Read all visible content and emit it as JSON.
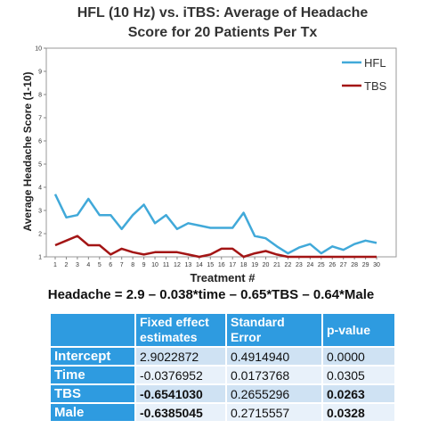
{
  "chart_data": {
    "type": "line",
    "title_lines": [
      "HFL (10 Hz) vs. iTBS: Average of Headache",
      "Score for 20 Patients Per Tx"
    ],
    "xlabel": "Treatment #",
    "ylabel": "Average Headache Score (1-10)",
    "x": [
      1,
      2,
      3,
      4,
      5,
      6,
      7,
      8,
      9,
      10,
      11,
      12,
      13,
      14,
      15,
      16,
      17,
      18,
      19,
      20,
      21,
      22,
      23,
      24,
      25,
      26,
      27,
      28,
      29,
      30
    ],
    "ylim": [
      1,
      10
    ],
    "yticks": [
      1,
      2,
      3,
      4,
      5,
      6,
      7,
      8,
      9,
      10
    ],
    "legend_position": "top-right",
    "series": [
      {
        "name": "HFL",
        "color": "#41a9d9",
        "values": [
          3.7,
          2.7,
          2.8,
          3.5,
          2.8,
          2.8,
          2.2,
          2.8,
          3.25,
          2.45,
          2.8,
          2.2,
          2.45,
          2.35,
          2.25,
          2.25,
          2.25,
          2.9,
          1.9,
          1.8,
          1.45,
          1.15,
          1.4,
          1.55,
          1.15,
          1.45,
          1.3,
          1.55,
          1.7,
          1.6
        ]
      },
      {
        "name": "TBS",
        "color": "#a31515",
        "values": [
          1.5,
          1.7,
          1.9,
          1.5,
          1.5,
          1.1,
          1.35,
          1.2,
          1.1,
          1.2,
          1.2,
          1.2,
          1.1,
          1.0,
          1.1,
          1.35,
          1.35,
          1.0,
          1.15,
          1.25,
          1.1,
          1.0,
          1.0,
          1.0,
          1.0,
          1.0,
          1.0,
          1.0,
          1.0,
          1.0
        ]
      }
    ]
  },
  "equation": "Headache = 2.9 – 0.038*time – 0.65*TBS – 0.64*Male",
  "table": {
    "headers": [
      "",
      "Fixed effect estimates",
      "Standard Error",
      "p-value"
    ],
    "rows": [
      {
        "label": "Intercept",
        "estimate": "2.9022872",
        "se": "0.4914940",
        "p": "0.0000",
        "bold_estimate": false,
        "bold_p": false
      },
      {
        "label": "Time",
        "estimate": "-0.0376952",
        "se": "0.0173768",
        "p": "0.0305",
        "bold_estimate": false,
        "bold_p": false
      },
      {
        "label": "TBS",
        "estimate": "-0.6541030",
        "se": "0.2655296",
        "p": "0.0263",
        "bold_estimate": true,
        "bold_p": true
      },
      {
        "label": "Male",
        "estimate": "-0.6385045",
        "se": "0.2715557",
        "p": "0.0328",
        "bold_estimate": true,
        "bold_p": true
      }
    ]
  }
}
